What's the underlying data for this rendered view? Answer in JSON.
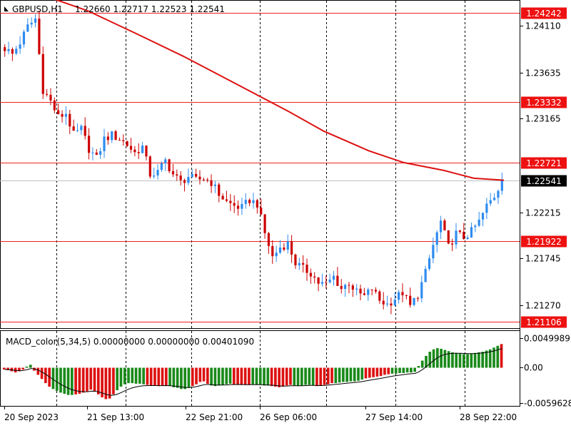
{
  "symbol_title": "GBPUSD,H1",
  "ohlc_header": "1.22660 1.22717 1.22523 1.22541",
  "macd_title": "MACD_color(5,34,5) 0.00000000 0.00000000 0.00401090",
  "colors": {
    "up_candle": "#2e8cf0",
    "down_candle": "#cc0000",
    "ma_line": "#dd1111",
    "level_line": "#ee2222",
    "price_badge": "#ee1111",
    "current_badge": "#000000",
    "macd_pos": "#1a8a1a",
    "macd_neg": "#dd1111",
    "signal_line": "#000000",
    "grid": "#000000"
  },
  "chart_data": [
    {
      "type": "candlestick",
      "title": "GBPUSD,H1",
      "price_axis_ticks": [
        "1.24110",
        "1.23635",
        "1.23165",
        "1.22215",
        "1.21745",
        "1.21270"
      ],
      "x_tick_labels": [
        "20 Sep 2023",
        "21 Sep 13:00",
        "22 Sep 21:00",
        "26 Sep 06:00",
        "27 Sep 14:00",
        "28 Sep 22:00"
      ],
      "ylim": [
        1.2099,
        1.2443
      ],
      "horizontal_levels": [
        "1.24242",
        "1.23332",
        "1.22721",
        "1.21922",
        "1.21106"
      ],
      "current_price": "1.22541",
      "grid": "vertical dashed",
      "close_path": [
        1.2388,
        1.2382,
        1.2394,
        1.241,
        1.2418,
        1.2346,
        1.2334,
        1.2318,
        1.2322,
        1.23,
        1.2306,
        1.2286,
        1.2276,
        1.2296,
        1.23,
        1.2296,
        1.229,
        1.2282,
        1.2288,
        1.226,
        1.2262,
        1.2274,
        1.226,
        1.2252,
        1.2258,
        1.2254,
        1.2256,
        1.2252,
        1.224,
        1.2232,
        1.2228,
        1.2226,
        1.2234,
        1.223,
        1.22,
        1.2176,
        1.2186,
        1.219,
        1.217,
        1.2164,
        1.216,
        1.215,
        1.2148,
        1.2156,
        1.2144,
        1.215,
        1.214,
        1.2136,
        1.2144,
        1.2132,
        1.2128,
        1.2134,
        1.214,
        1.2126,
        1.2138,
        1.216,
        1.2188,
        1.2212,
        1.2186,
        1.22,
        1.2196,
        1.2202,
        1.2212,
        1.2228,
        1.2238,
        1.2254
      ],
      "moving_average": [
        [
          0,
          1.2446
        ],
        [
          0.08,
          1.2442
        ],
        [
          0.17,
          1.2426
        ],
        [
          0.27,
          1.2402
        ],
        [
          0.36,
          1.238
        ],
        [
          0.45,
          1.2356
        ],
        [
          0.57,
          1.2324
        ],
        [
          0.64,
          1.2304
        ],
        [
          0.73,
          1.2284
        ],
        [
          0.8,
          1.2272
        ],
        [
          0.88,
          1.2264
        ],
        [
          0.94,
          1.2256
        ],
        [
          1.0,
          1.22541
        ]
      ]
    },
    {
      "type": "bar",
      "title": "MACD_color(5,34,5)",
      "axis_ticks": [
        "0.0049989",
        "0.00",
        "-0.0059628"
      ],
      "ylim": [
        -0.0059628,
        0.0049989
      ],
      "values": [
        -0.0003,
        -0.0004,
        -0.0006,
        -0.0008,
        -0.0006,
        -0.0003,
        0.0002,
        0.0005,
        -0.0005,
        -0.0012,
        -0.0019,
        -0.0026,
        -0.0032,
        -0.0036,
        -0.0039,
        -0.0042,
        -0.0044,
        -0.0046,
        -0.0046,
        -0.0045,
        -0.0044,
        -0.0042,
        -0.004,
        -0.0037,
        -0.004,
        -0.0045,
        -0.005,
        -0.0053,
        -0.0052,
        -0.0045,
        -0.0038,
        -0.0032,
        -0.0028,
        -0.0026,
        -0.0026,
        -0.0027,
        -0.0027,
        -0.0028,
        -0.0029,
        -0.003,
        -0.003,
        -0.0031,
        -0.003,
        -0.003,
        -0.0031,
        -0.0033,
        -0.0034,
        -0.0036,
        -0.0036,
        -0.0034,
        -0.0031,
        -0.0028,
        -0.0024,
        -0.0023,
        -0.0027,
        -0.003,
        -0.0031,
        -0.003,
        -0.0029,
        -0.0028,
        -0.0027,
        -0.0028,
        -0.0028,
        -0.0029,
        -0.0029,
        -0.0029,
        -0.0028,
        -0.0028,
        -0.0029,
        -0.003,
        -0.003,
        -0.0031,
        -0.0032,
        -0.0033,
        -0.0032,
        -0.003,
        -0.0029,
        -0.003,
        -0.0031,
        -0.003,
        -0.0029,
        -0.0029,
        -0.003,
        -0.0031,
        -0.003,
        -0.0029,
        -0.0028,
        -0.0026,
        -0.0026,
        -0.0025,
        -0.0024,
        -0.0024,
        -0.0023,
        -0.0023,
        -0.0022,
        -0.002,
        -0.0018,
        -0.0017,
        -0.0016,
        -0.0015,
        -0.0014,
        -0.0012,
        -0.0011,
        -0.001,
        -0.001,
        -0.0009,
        -0.0009,
        -0.0008,
        -0.0008,
        -0.0007,
        0.0003,
        0.0012,
        0.002,
        0.0027,
        0.0031,
        0.0033,
        0.0032,
        0.003,
        0.0028,
        0.0026,
        0.0025,
        0.0024,
        0.0023,
        0.0023,
        0.0024,
        0.0025,
        0.0026,
        0.0027,
        0.0029,
        0.0031,
        0.0034,
        0.0037,
        0.004
      ],
      "positive_index_ranges": [
        [
          6,
          7
        ],
        [
          13,
          18
        ],
        [
          30,
          37
        ],
        [
          44,
          49
        ],
        [
          55,
          60
        ],
        [
          66,
          70
        ],
        [
          77,
          82
        ],
        [
          88,
          95
        ],
        [
          103,
          131
        ]
      ]
    }
  ]
}
